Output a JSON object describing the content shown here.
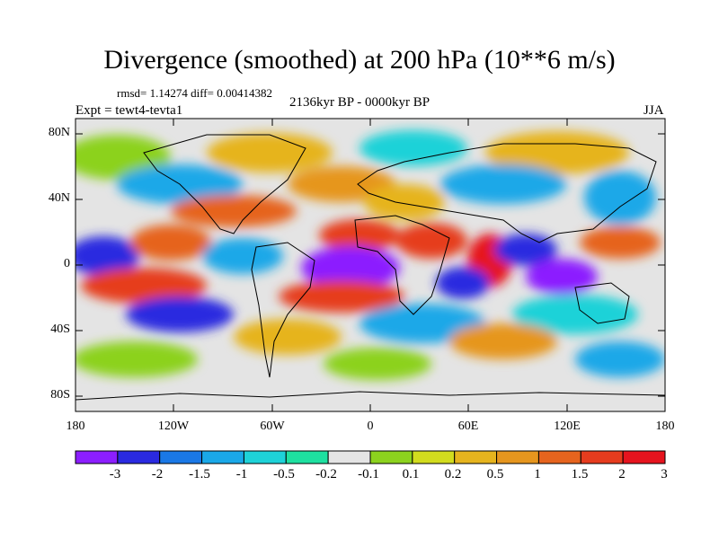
{
  "title": "Divergence (smoothed) at 200 hPa (10**6 m/s)",
  "stats": "rmsd= 1.14274 diff= 0.00414382",
  "experiment": "Expt = tewt4-tevta1",
  "period": "2136kyr BP - 0000kyr BP",
  "season": "JJA",
  "y_axis": {
    "labels": [
      "80N",
      "40N",
      "0",
      "40S",
      "80S"
    ]
  },
  "x_axis": {
    "labels": [
      "180",
      "120W",
      "60W",
      "0",
      "60E",
      "120E",
      "180"
    ]
  },
  "colorbar": {
    "colors": [
      "#8c1eff",
      "#2a2ae0",
      "#1a78e6",
      "#1aa8e8",
      "#1ed2d8",
      "#1ee0a0",
      "#e4e4e4",
      "#8cd21e",
      "#d2dc1e",
      "#e6b41e",
      "#e6961e",
      "#e6641e",
      "#e63c1e",
      "#e6141e"
    ],
    "labels": [
      "-3",
      "-2",
      "-1.5",
      "-1",
      "-0.5",
      "-0.2",
      "-0.1",
      "0.1",
      "0.2",
      "0.5",
      "1",
      "1.5",
      "2",
      "3"
    ]
  }
}
